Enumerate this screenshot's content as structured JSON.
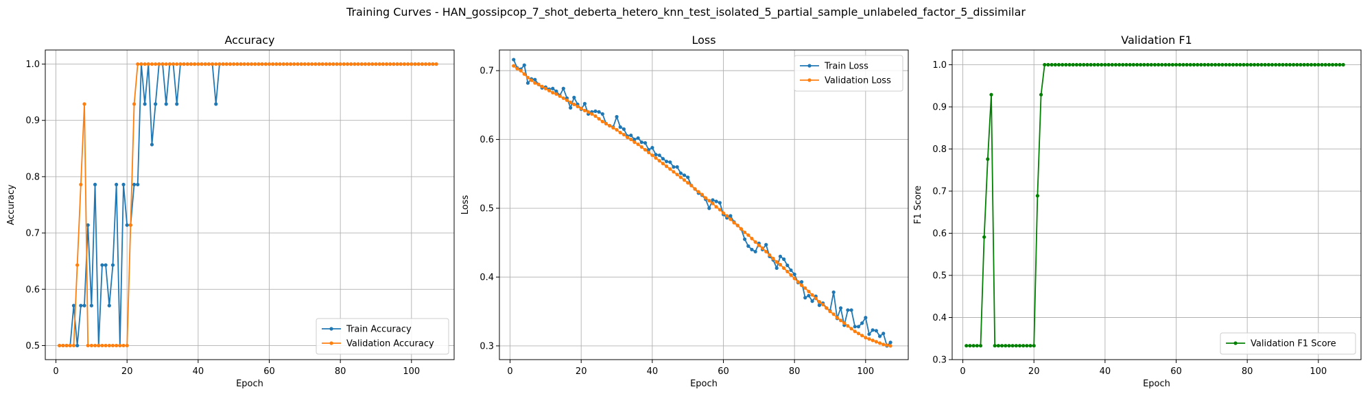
{
  "figure": {
    "suptitle": "Training Curves - HAN_gossipcop_7_shot_deberta_hetero_knn_test_isolated_5_partial_sample_unlabeled_factor_5_dissimilar"
  },
  "chart_data": [
    {
      "type": "line",
      "title": "Accuracy",
      "xlabel": "Epoch",
      "ylabel": "Accuracy",
      "xlim": [
        -3,
        112
      ],
      "ylim": [
        0.475,
        1.025
      ],
      "xticks": [
        0,
        20,
        40,
        60,
        80,
        100
      ],
      "yticks": [
        0.5,
        0.6,
        0.7,
        0.8,
        0.9,
        1.0
      ],
      "ytick_labels": [
        "0.5",
        "0.6",
        "0.7",
        "0.8",
        "0.9",
        "1.0"
      ],
      "grid": true,
      "legend_position": "lower-right",
      "series": [
        {
          "name": "Train Accuracy",
          "color": "#1f77b4",
          "x_start": 1,
          "values": [
            0.5,
            0.5,
            0.5,
            0.5,
            0.571,
            0.5,
            0.571,
            0.571,
            0.714,
            0.571,
            0.786,
            0.5,
            0.643,
            0.643,
            0.571,
            0.643,
            0.786,
            0.5,
            0.786,
            0.714,
            0.714,
            0.786,
            0.786,
            1.0,
            0.929,
            1.0,
            0.857,
            0.929,
            1.0,
            1.0,
            0.929,
            1.0,
            1.0,
            0.929,
            1.0,
            1.0,
            1.0,
            1.0,
            1.0,
            1.0,
            1.0,
            1.0,
            1.0,
            1.0,
            0.929,
            1.0,
            1.0,
            1.0,
            1.0,
            1.0,
            1.0,
            1.0,
            1.0,
            1.0,
            1.0,
            1.0,
            1.0,
            1.0,
            1.0,
            1.0,
            1.0,
            1.0,
            1.0,
            1.0,
            1.0,
            1.0,
            1.0,
            1.0,
            1.0,
            1.0,
            1.0,
            1.0,
            1.0,
            1.0,
            1.0,
            1.0,
            1.0,
            1.0,
            1.0,
            1.0,
            1.0,
            1.0,
            1.0,
            1.0,
            1.0,
            1.0,
            1.0,
            1.0,
            1.0,
            1.0,
            1.0,
            1.0,
            1.0,
            1.0,
            1.0,
            1.0,
            1.0,
            1.0,
            1.0,
            1.0,
            1.0,
            1.0,
            1.0,
            1.0,
            1.0,
            1.0,
            1.0
          ]
        },
        {
          "name": "Validation Accuracy",
          "color": "#ff7f0e",
          "x_start": 1,
          "values": [
            0.5,
            0.5,
            0.5,
            0.5,
            0.5,
            0.643,
            0.786,
            0.929,
            0.5,
            0.5,
            0.5,
            0.5,
            0.5,
            0.5,
            0.5,
            0.5,
            0.5,
            0.5,
            0.5,
            0.5,
            0.714,
            0.929,
            1.0,
            1.0,
            1.0,
            1.0,
            1.0,
            1.0,
            1.0,
            1.0,
            1.0,
            1.0,
            1.0,
            1.0,
            1.0,
            1.0,
            1.0,
            1.0,
            1.0,
            1.0,
            1.0,
            1.0,
            1.0,
            1.0,
            1.0,
            1.0,
            1.0,
            1.0,
            1.0,
            1.0,
            1.0,
            1.0,
            1.0,
            1.0,
            1.0,
            1.0,
            1.0,
            1.0,
            1.0,
            1.0,
            1.0,
            1.0,
            1.0,
            1.0,
            1.0,
            1.0,
            1.0,
            1.0,
            1.0,
            1.0,
            1.0,
            1.0,
            1.0,
            1.0,
            1.0,
            1.0,
            1.0,
            1.0,
            1.0,
            1.0,
            1.0,
            1.0,
            1.0,
            1.0,
            1.0,
            1.0,
            1.0,
            1.0,
            1.0,
            1.0,
            1.0,
            1.0,
            1.0,
            1.0,
            1.0,
            1.0,
            1.0,
            1.0,
            1.0,
            1.0,
            1.0,
            1.0,
            1.0,
            1.0,
            1.0,
            1.0,
            1.0
          ]
        }
      ]
    },
    {
      "type": "line",
      "title": "Loss",
      "xlabel": "Epoch",
      "ylabel": "Loss",
      "xlim": [
        -3,
        112
      ],
      "ylim": [
        0.28,
        0.73
      ],
      "xticks": [
        0,
        20,
        40,
        60,
        80,
        100
      ],
      "yticks": [
        0.3,
        0.4,
        0.5,
        0.6,
        0.7
      ],
      "ytick_labels": [
        "0.3",
        "0.4",
        "0.5",
        "0.6",
        "0.7"
      ],
      "grid": true,
      "legend_position": "upper-right",
      "series": [
        {
          "name": "Train Loss",
          "color": "#1f77b4",
          "x_start": 1,
          "values": [
            0.716,
            0.704,
            0.702,
            0.708,
            0.682,
            0.688,
            0.687,
            0.68,
            0.675,
            0.676,
            0.673,
            0.674,
            0.67,
            0.664,
            0.674,
            0.66,
            0.646,
            0.661,
            0.651,
            0.644,
            0.652,
            0.637,
            0.64,
            0.641,
            0.64,
            0.637,
            0.623,
            0.62,
            0.618,
            0.633,
            0.618,
            0.615,
            0.605,
            0.606,
            0.6,
            0.602,
            0.596,
            0.595,
            0.585,
            0.588,
            0.578,
            0.577,
            0.572,
            0.568,
            0.567,
            0.56,
            0.56,
            0.551,
            0.548,
            0.545,
            0.533,
            0.528,
            0.522,
            0.519,
            0.513,
            0.5,
            0.512,
            0.51,
            0.508,
            0.491,
            0.486,
            0.489,
            0.48,
            0.475,
            0.47,
            0.455,
            0.445,
            0.44,
            0.437,
            0.449,
            0.44,
            0.447,
            0.43,
            0.425,
            0.413,
            0.43,
            0.426,
            0.417,
            0.41,
            0.404,
            0.392,
            0.393,
            0.37,
            0.373,
            0.365,
            0.372,
            0.359,
            0.362,
            0.355,
            0.351,
            0.378,
            0.34,
            0.355,
            0.33,
            0.352,
            0.352,
            0.328,
            0.328,
            0.333,
            0.341,
            0.317,
            0.323,
            0.322,
            0.314,
            0.318,
            0.3,
            0.305
          ]
        },
        {
          "name": "Validation Loss",
          "color": "#ff7f0e",
          "x_start": 1,
          "values": [
            0.707,
            0.703,
            0.7,
            0.695,
            0.69,
            0.686,
            0.682,
            0.68,
            0.677,
            0.674,
            0.671,
            0.668,
            0.666,
            0.663,
            0.66,
            0.657,
            0.654,
            0.651,
            0.648,
            0.645,
            0.642,
            0.64,
            0.637,
            0.634,
            0.63,
            0.626,
            0.623,
            0.62,
            0.617,
            0.614,
            0.61,
            0.607,
            0.603,
            0.6,
            0.596,
            0.593,
            0.589,
            0.585,
            0.581,
            0.577,
            0.573,
            0.569,
            0.565,
            0.561,
            0.557,
            0.553,
            0.549,
            0.545,
            0.541,
            0.537,
            0.533,
            0.528,
            0.524,
            0.52,
            0.515,
            0.511,
            0.507,
            0.502,
            0.498,
            0.493,
            0.489,
            0.484,
            0.479,
            0.475,
            0.47,
            0.465,
            0.461,
            0.456,
            0.451,
            0.446,
            0.442,
            0.437,
            0.432,
            0.427,
            0.422,
            0.418,
            0.413,
            0.408,
            0.403,
            0.398,
            0.393,
            0.388,
            0.384,
            0.379,
            0.374,
            0.369,
            0.364,
            0.36,
            0.355,
            0.35,
            0.346,
            0.341,
            0.337,
            0.333,
            0.329,
            0.325,
            0.321,
            0.318,
            0.315,
            0.312,
            0.31,
            0.308,
            0.306,
            0.304,
            0.302,
            0.301,
            0.3
          ]
        }
      ]
    },
    {
      "type": "line",
      "title": "Validation F1",
      "xlabel": "Epoch",
      "ylabel": "F1 Score",
      "xlim": [
        -3,
        112
      ],
      "ylim": [
        0.3,
        1.035
      ],
      "xticks": [
        0,
        20,
        40,
        60,
        80,
        100
      ],
      "yticks": [
        0.3,
        0.4,
        0.5,
        0.6,
        0.7,
        0.8,
        0.9,
        1.0
      ],
      "ytick_labels": [
        "0.3",
        "0.4",
        "0.5",
        "0.6",
        "0.7",
        "0.8",
        "0.9",
        "1.0"
      ],
      "grid": true,
      "legend_position": "lower-right",
      "series": [
        {
          "name": "Validation F1 Score",
          "color": "#008000",
          "x_start": 1,
          "values": [
            0.333,
            0.333,
            0.333,
            0.333,
            0.333,
            0.591,
            0.776,
            0.929,
            0.333,
            0.333,
            0.333,
            0.333,
            0.333,
            0.333,
            0.333,
            0.333,
            0.333,
            0.333,
            0.333,
            0.333,
            0.689,
            0.929,
            1.0,
            1.0,
            1.0,
            1.0,
            1.0,
            1.0,
            1.0,
            1.0,
            1.0,
            1.0,
            1.0,
            1.0,
            1.0,
            1.0,
            1.0,
            1.0,
            1.0,
            1.0,
            1.0,
            1.0,
            1.0,
            1.0,
            1.0,
            1.0,
            1.0,
            1.0,
            1.0,
            1.0,
            1.0,
            1.0,
            1.0,
            1.0,
            1.0,
            1.0,
            1.0,
            1.0,
            1.0,
            1.0,
            1.0,
            1.0,
            1.0,
            1.0,
            1.0,
            1.0,
            1.0,
            1.0,
            1.0,
            1.0,
            1.0,
            1.0,
            1.0,
            1.0,
            1.0,
            1.0,
            1.0,
            1.0,
            1.0,
            1.0,
            1.0,
            1.0,
            1.0,
            1.0,
            1.0,
            1.0,
            1.0,
            1.0,
            1.0,
            1.0,
            1.0,
            1.0,
            1.0,
            1.0,
            1.0,
            1.0,
            1.0,
            1.0,
            1.0,
            1.0,
            1.0,
            1.0,
            1.0,
            1.0,
            1.0,
            1.0,
            1.0
          ]
        }
      ]
    }
  ]
}
